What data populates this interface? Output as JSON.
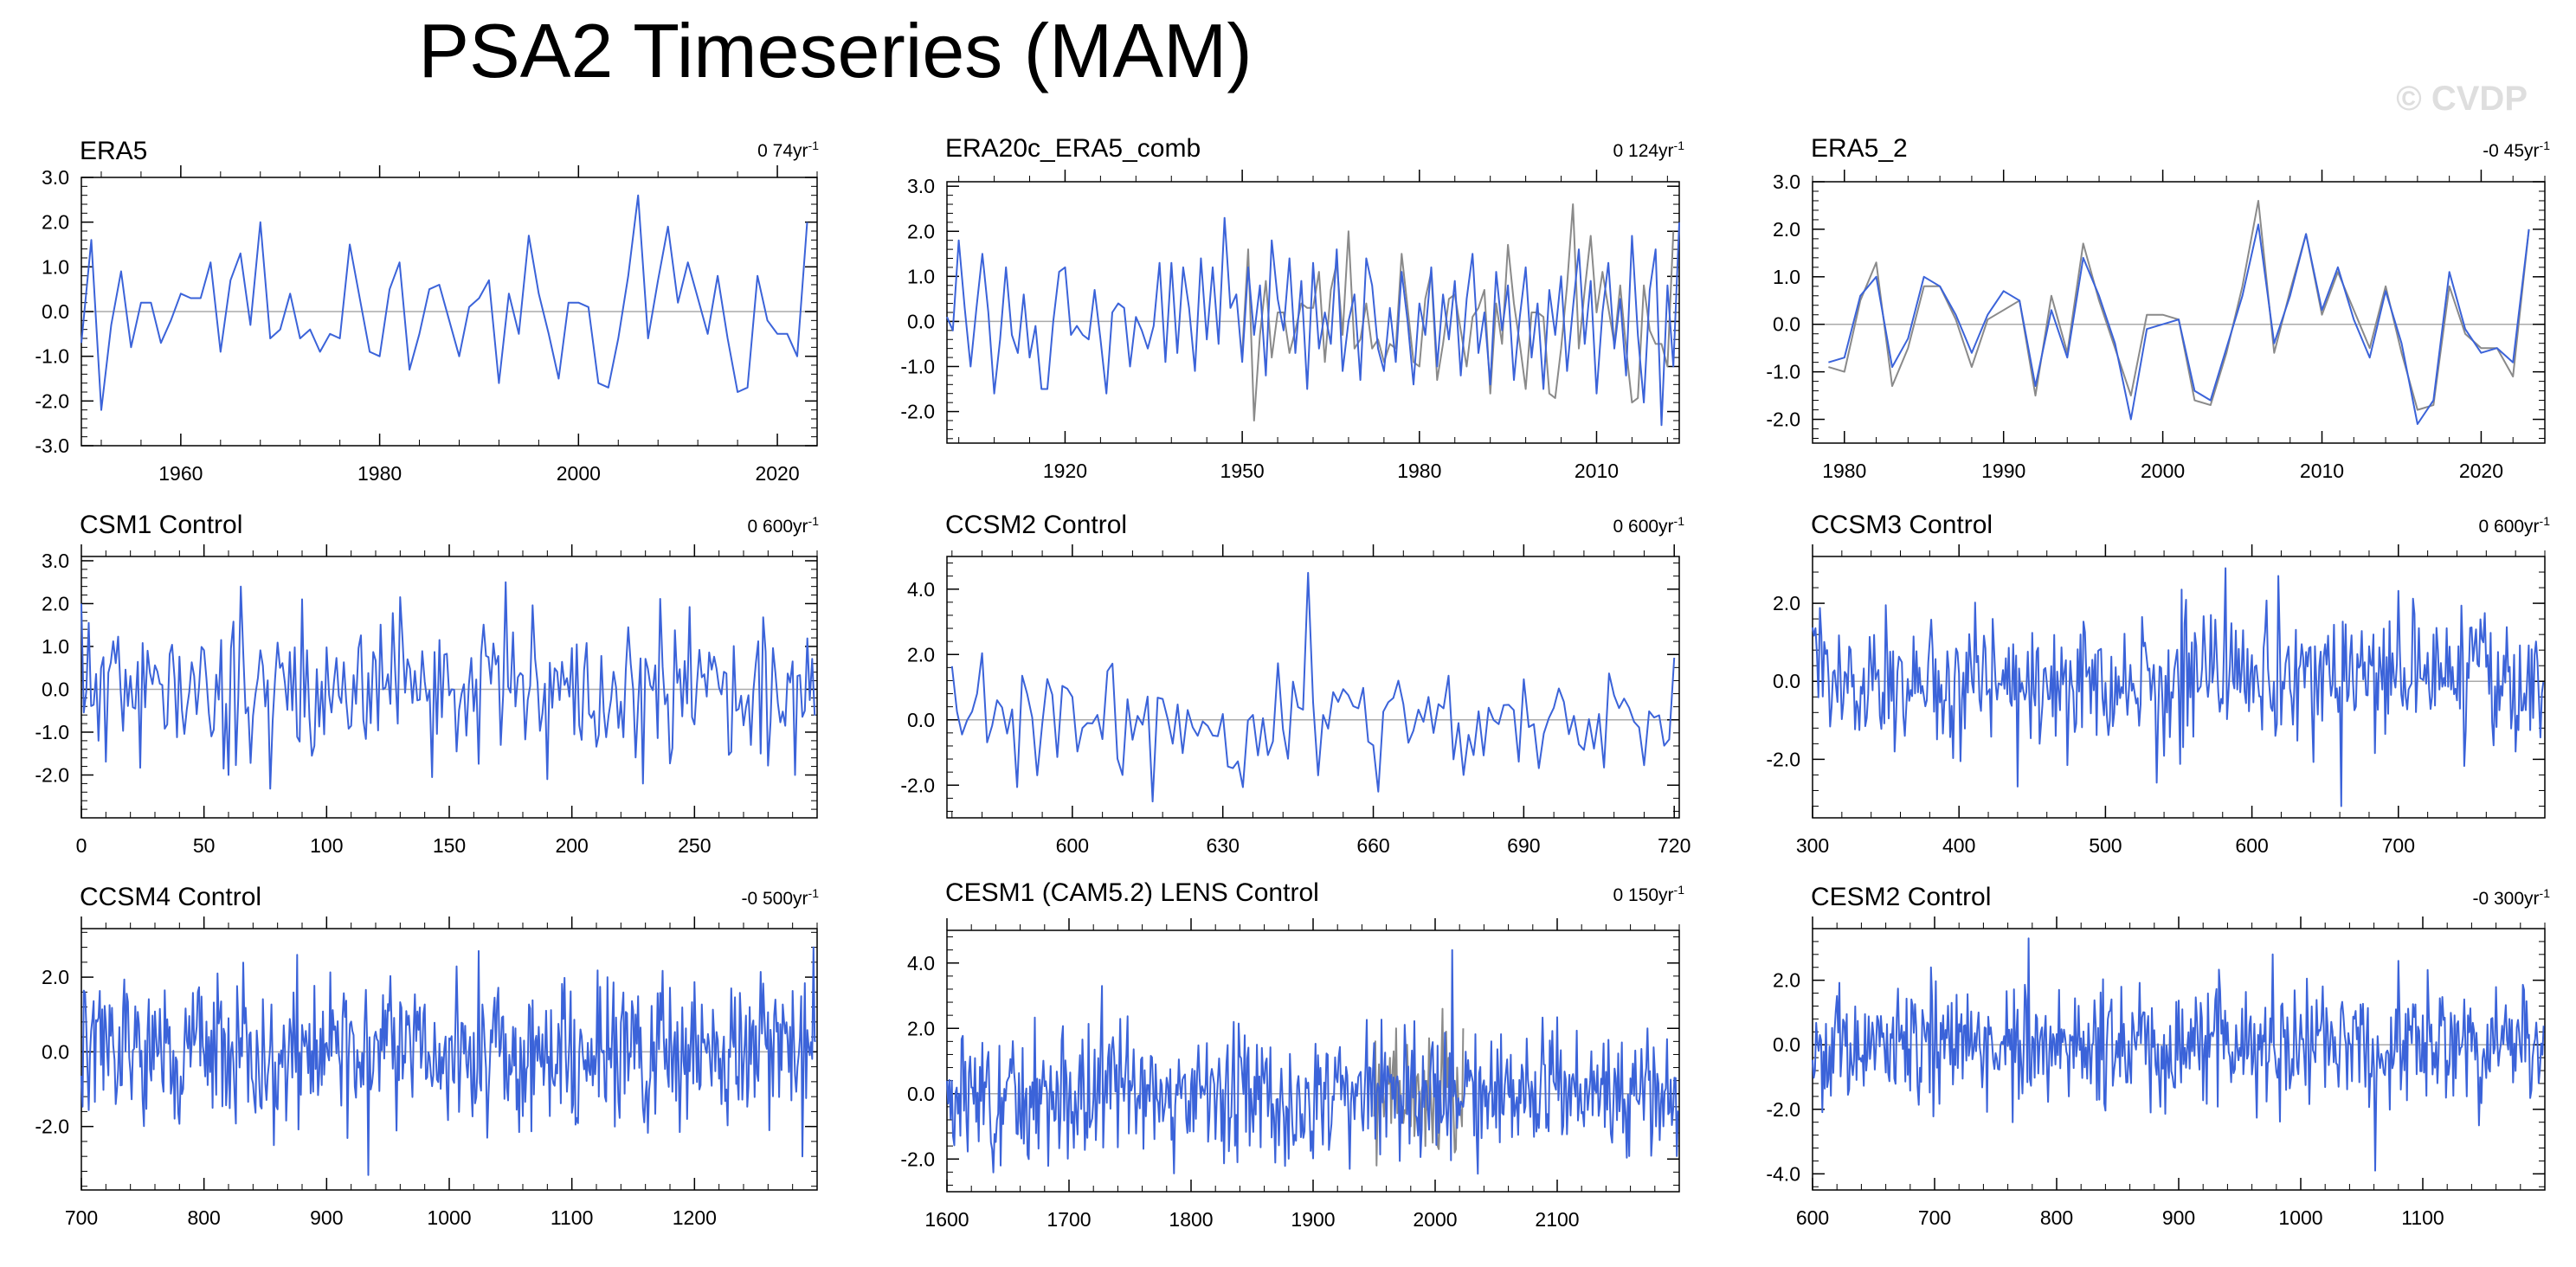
{
  "title": "PSA2 Timeseries (MAM)",
  "watermark": "© CVDP",
  "colors": {
    "primary": "#3b63d9",
    "secondary": "#8a8a8a",
    "zero_line": "#aaaaaa",
    "axis": "#000000"
  },
  "chart_data": [
    {
      "type": "line",
      "title": "ERA5",
      "trend_value": "0 74yr",
      "trend_unit": "-1",
      "xlim": [
        1950,
        2024
      ],
      "ylim": [
        -3,
        3
      ],
      "xticks": [
        1960,
        1980,
        2000,
        2020
      ],
      "yticks": [
        -3,
        -2,
        -1,
        0,
        1,
        2,
        3
      ],
      "ytick_labels": [
        "-3.0",
        "-2.0",
        "-1.0",
        "0.0",
        "1.0",
        "2.0",
        "3.0"
      ],
      "series": [
        {
          "name": "ERA5",
          "color": "#3b63d9",
          "x_start": 1950,
          "x_step": 1,
          "values": [
            -0.7,
            1.6,
            -2.2,
            -0.3,
            0.9,
            -0.8,
            0.2,
            0.2,
            -0.7,
            -0.2,
            0.4,
            0.3,
            0.3,
            1.1,
            -0.9,
            0.7,
            1.3,
            -0.3,
            2.0,
            -0.6,
            -0.4,
            0.4,
            -0.6,
            -0.4,
            -0.9,
            -0.5,
            -0.6,
            1.5,
            0.3,
            -0.9,
            -1.0,
            0.5,
            1.1,
            -1.3,
            -0.5,
            0.5,
            0.6,
            -0.2,
            -1.0,
            0.1,
            0.3,
            0.7,
            -1.6,
            0.4,
            -0.5,
            1.7,
            0.4,
            -0.5,
            -1.5,
            0.2,
            0.2,
            0.1,
            -1.6,
            -1.7,
            -0.6,
            0.8,
            2.6,
            -0.6,
            0.7,
            1.9,
            0.2,
            1.1,
            0.3,
            -0.5,
            0.8,
            -0.6,
            -1.8,
            -1.7,
            0.8,
            -0.2,
            -0.5,
            -0.5,
            -1.0,
            2.0
          ]
        }
      ]
    },
    {
      "type": "line",
      "title": "ERA20c_ERA5_comb",
      "trend_value": "0 124yr",
      "trend_unit": "-1",
      "xlim": [
        1900,
        2024
      ],
      "ylim": [
        -2.7,
        3.1
      ],
      "xticks": [
        1920,
        1950,
        1980,
        2010
      ],
      "yticks": [
        -2,
        -1,
        0,
        1,
        2,
        3
      ],
      "ytick_labels": [
        "-2.0",
        "-1.0",
        "0.0",
        "1.0",
        "2.0",
        "3.0"
      ],
      "series": [
        {
          "name": "ERA20c",
          "color": "#3b63d9",
          "x_start": 1900,
          "x_step": 1,
          "values": [
            0.1,
            -0.2,
            1.8,
            0.3,
            -1.0,
            0.3,
            1.5,
            0.2,
            -1.6,
            -0.4,
            1.2,
            -0.3,
            -0.7,
            0.6,
            -0.8,
            -0.1,
            -1.5,
            -1.5,
            0.0,
            1.1,
            1.2,
            -0.3,
            -0.1,
            -0.3,
            -0.4,
            0.7,
            -0.4,
            -1.6,
            0.2,
            0.4,
            0.3,
            -1.0,
            0.1,
            -0.2,
            -0.6,
            -0.1,
            1.3,
            -0.9,
            1.3,
            -0.7,
            1.2,
            0.3,
            -1.1,
            1.4,
            -0.4,
            1.2,
            -0.5,
            2.3,
            0.3,
            0.6,
            -0.9,
            1.2,
            -0.3,
            0.8,
            -1.2,
            1.8,
            0.5,
            -0.2,
            1.4,
            -0.7,
            0.9,
            -1.5,
            1.3,
            -0.6,
            0.2,
            -0.5,
            1.6,
            -1.1,
            0.0,
            0.6,
            -1.3,
            1.4,
            0.8,
            -0.6,
            -1.1,
            0.3,
            -0.9,
            1.1,
            0.0,
            -1.4,
            0.4,
            -0.3,
            1.2,
            -1.0,
            0.6,
            -0.4,
            0.9,
            -1.2,
            0.5,
            1.5,
            -0.7,
            0.2,
            -1.4,
            1.1,
            -0.2,
            0.8,
            -1.3,
            0.1,
            1.2,
            -0.8,
            0.4,
            -1.5,
            0.7,
            -0.3,
            1.0,
            -1.1,
            0.3,
            1.6,
            -0.5,
            0.9,
            -1.6,
            0.2,
            1.3,
            -0.6,
            0.5,
            -1.2,
            1.9,
            -0.3,
            -1.8,
            0.7,
            1.6,
            -2.3,
            0.8,
            -1.0,
            2.2
          ]
        },
        {
          "name": "ERA5",
          "color": "#8a8a8a",
          "x_start": 1950,
          "x_step": 1,
          "values": [
            -0.7,
            1.6,
            -2.2,
            -0.3,
            0.9,
            -0.8,
            0.2,
            0.2,
            -0.7,
            -0.2,
            0.4,
            0.3,
            0.3,
            1.1,
            -0.9,
            0.7,
            1.3,
            -0.3,
            2.0,
            -0.6,
            -0.4,
            0.4,
            -0.6,
            -0.4,
            -0.9,
            -0.5,
            -0.6,
            1.5,
            0.3,
            -0.9,
            -1.0,
            0.5,
            1.1,
            -1.3,
            -0.5,
            0.5,
            0.6,
            -0.2,
            -1.0,
            0.1,
            0.3,
            0.7,
            -1.6,
            0.4,
            -0.5,
            1.7,
            0.4,
            -0.5,
            -1.5,
            0.2,
            0.2,
            0.1,
            -1.6,
            -1.7,
            -0.6,
            0.8,
            2.6,
            -0.6,
            0.7,
            1.9,
            0.2,
            1.1,
            0.3,
            -0.5,
            0.8,
            -0.6,
            -1.8,
            -1.7,
            0.8,
            -0.2,
            -0.5,
            -0.5,
            -1.0,
            2.0
          ]
        }
      ]
    },
    {
      "type": "line",
      "title": "ERA5_2",
      "trend_value": "-0 45yr",
      "trend_unit": "-1",
      "xlim": [
        1978,
        2024
      ],
      "ylim": [
        -2.5,
        3.0
      ],
      "xticks": [
        1980,
        1990,
        2000,
        2010,
        2020
      ],
      "yticks": [
        -2,
        -1,
        0,
        1,
        2,
        3
      ],
      "ytick_labels": [
        "-2.0",
        "-1.0",
        "0.0",
        "1.0",
        "2.0",
        "3.0"
      ],
      "series": [
        {
          "name": "ERA5 (grey)",
          "color": "#8a8a8a",
          "x_start": 1979,
          "x_step": 1,
          "values": [
            -0.9,
            -1.0,
            0.5,
            1.3,
            -1.3,
            -0.5,
            0.8,
            0.8,
            0.1,
            -0.9,
            0.1,
            0.3,
            0.5,
            -1.5,
            0.6,
            -0.6,
            1.7,
            0.5,
            -0.5,
            -1.5,
            0.2,
            0.2,
            0.1,
            -1.6,
            -1.7,
            -0.6,
            0.8,
            2.6,
            -0.6,
            0.7,
            1.9,
            0.2,
            1.1,
            0.3,
            -0.5,
            0.8,
            -0.6,
            -1.8,
            -1.7,
            0.8,
            -0.2,
            -0.5,
            -0.5,
            -1.1,
            2.0
          ]
        },
        {
          "name": "ERA5_2",
          "color": "#3b63d9",
          "x_start": 1979,
          "x_step": 1,
          "values": [
            -0.8,
            -0.7,
            0.6,
            1.0,
            -0.9,
            -0.3,
            1.0,
            0.8,
            0.2,
            -0.6,
            0.2,
            0.7,
            0.5,
            -1.3,
            0.3,
            -0.7,
            1.4,
            0.6,
            -0.4,
            -2.0,
            -0.1,
            0.0,
            0.1,
            -1.4,
            -1.6,
            -0.5,
            0.6,
            2.1,
            -0.4,
            0.6,
            1.9,
            0.3,
            1.2,
            0.1,
            -0.7,
            0.7,
            -0.4,
            -2.1,
            -1.6,
            1.1,
            -0.1,
            -0.6,
            -0.5,
            -0.8,
            2.0
          ]
        }
      ]
    },
    {
      "type": "line",
      "title": "CSM1 Control",
      "trend_value": "0 600yr",
      "trend_unit": "-1",
      "xlim": [
        0,
        300
      ],
      "ylim": [
        -3.0,
        3.1
      ],
      "xticks": [
        0,
        50,
        100,
        150,
        200,
        250
      ],
      "yticks": [
        -2,
        -1,
        0,
        1,
        2,
        3
      ],
      "ytick_labels": [
        "-2.0",
        "-1.0",
        "0.0",
        "1.0",
        "2.0",
        "3.0"
      ],
      "series": [
        {
          "name": "CSM1",
          "color": "#3b63d9",
          "x_start": 0,
          "x_step": 1,
          "seed": 11,
          "n": 300,
          "amp": 0.85,
          "peaks": [
            [
              0,
              2.0
            ],
            [
              65,
              2.4
            ],
            [
              173,
              2.5
            ],
            [
              90,
              2.1
            ],
            [
              190,
              -2.1
            ],
            [
              229,
              -2.2
            ],
            [
              60,
              -2.0
            ],
            [
              291,
              -2.0
            ]
          ]
        }
      ]
    },
    {
      "type": "line",
      "title": "CCSM2 Control",
      "trend_value": "0 600yr",
      "trend_unit": "-1",
      "xlim": [
        575,
        721
      ],
      "ylim": [
        -3.0,
        5.0
      ],
      "xticks": [
        600,
        630,
        660,
        690,
        720
      ],
      "yticks": [
        -2,
        0,
        2,
        4
      ],
      "ytick_labels": [
        "-2.0",
        "0.0",
        "2.0",
        "4.0"
      ],
      "series": [
        {
          "name": "CCSM2",
          "color": "#3b63d9",
          "x_start": 576,
          "x_step": 1,
          "seed": 23,
          "n": 145,
          "amp": 0.85,
          "peaks": [
            [
              647,
              4.5
            ],
            [
              616,
              -2.5
            ],
            [
              661,
              -2.2
            ],
            [
              665,
              1.2
            ],
            [
              720,
              1.9
            ],
            [
              593,
              -1.7
            ]
          ]
        }
      ]
    },
    {
      "type": "line",
      "title": "CCSM3 Control",
      "trend_value": "0 600yr",
      "trend_unit": "-1",
      "xlim": [
        300,
        800
      ],
      "ylim": [
        -3.5,
        3.2
      ],
      "xticks": [
        300,
        400,
        500,
        600,
        700
      ],
      "yticks": [
        -2,
        0,
        2
      ],
      "ytick_labels": [
        "-2.0",
        "0.0",
        "2.0"
      ],
      "series": [
        {
          "name": "CCSM3",
          "color": "#3b63d9",
          "x_start": 300,
          "x_step": 1,
          "seed": 37,
          "n": 500,
          "amp": 0.85,
          "peaks": [
            [
              582,
              2.9
            ],
            [
              661,
              -3.2
            ],
            [
              440,
              -2.7
            ],
            [
              535,
              -2.6
            ],
            [
              618,
              2.7
            ]
          ]
        }
      ]
    },
    {
      "type": "line",
      "title": "CCSM4 Control",
      "trend_value": "-0 500yr",
      "trend_unit": "-1",
      "xlim": [
        700,
        1300
      ],
      "ylim": [
        -3.7,
        3.3
      ],
      "xticks": [
        700,
        800,
        900,
        1000,
        1100,
        1200
      ],
      "yticks": [
        -2,
        0,
        2
      ],
      "ytick_labels": [
        "-2.0",
        "0.0",
        "2.0"
      ],
      "series": [
        {
          "name": "CCSM4",
          "color": "#3b63d9",
          "x_start": 700,
          "x_step": 1,
          "seed": 51,
          "n": 600,
          "amp": 0.95,
          "peaks": [
            [
              934,
              -3.3
            ],
            [
              1297,
              2.8
            ],
            [
              1288,
              -2.8
            ],
            [
              876,
              2.6
            ],
            [
              1024,
              2.7
            ],
            [
              857,
              -2.5
            ]
          ]
        }
      ]
    },
    {
      "type": "line",
      "title": "CESM1 (CAM5.2) LENS Control",
      "trend_value": "0 150yr",
      "trend_unit": "-1",
      "xlim": [
        1600,
        2200
      ],
      "ylim": [
        -3.0,
        5.0
      ],
      "xticks": [
        1600,
        1700,
        1800,
        1900,
        2000,
        2100
      ],
      "yticks": [
        -2,
        0,
        2,
        4
      ],
      "ytick_labels": [
        "-2.0",
        "0.0",
        "2.0",
        "4.0"
      ],
      "series": [
        {
          "name": "CESM1",
          "color": "#3b63d9",
          "x_start": 1600,
          "x_step": 1,
          "seed": 67,
          "n": 600,
          "amp": 0.95,
          "peaks": [
            [
              2014,
              4.4
            ],
            [
              1727,
              3.3
            ],
            [
              1930,
              -2.3
            ],
            [
              1644,
              -2.2
            ],
            [
              2174,
              2.0
            ]
          ]
        },
        {
          "name": "ERA5 overlay",
          "color": "#8a8a8a",
          "x_start": 1950,
          "x_step": 1,
          "values": [
            -0.7,
            1.6,
            -2.2,
            -0.3,
            0.9,
            -0.8,
            0.2,
            0.2,
            -0.7,
            -0.2,
            0.4,
            0.3,
            0.3,
            1.1,
            -0.9,
            0.7,
            1.3,
            -0.3,
            2.0,
            -0.6,
            -0.4,
            0.4,
            -0.6,
            -0.4,
            -0.9,
            -0.5,
            -0.6,
            1.5,
            0.3,
            -0.9,
            -1.0,
            0.5,
            1.1,
            -1.3,
            -0.5,
            0.5,
            0.6,
            -0.2,
            -1.0,
            0.1,
            0.3,
            0.7,
            -1.6,
            0.4,
            -0.5,
            1.7,
            0.4,
            -0.5,
            -1.5,
            0.2,
            0.2,
            0.1,
            -1.6,
            -1.7,
            -0.6,
            0.8,
            2.6,
            -0.6,
            0.7,
            1.9,
            0.2,
            1.1,
            0.3,
            -0.5,
            0.8,
            -0.6,
            -1.8,
            -1.7,
            0.8,
            -0.2,
            -0.5,
            -0.5,
            -1.0,
            2.0
          ]
        }
      ]
    },
    {
      "type": "line",
      "title": "CESM2 Control",
      "trend_value": "-0 300yr",
      "trend_unit": "-1",
      "xlim": [
        600,
        1200
      ],
      "ylim": [
        -4.5,
        3.6
      ],
      "xticks": [
        600,
        700,
        800,
        900,
        1000,
        1100
      ],
      "yticks": [
        -4,
        -2,
        0,
        2
      ],
      "ytick_labels": [
        "-4.0",
        "-2.0",
        "0.0",
        "2.0"
      ],
      "series": [
        {
          "name": "CESM2",
          "color": "#3b63d9",
          "x_start": 600,
          "x_step": 1,
          "seed": 83,
          "n": 600,
          "amp": 0.95,
          "peaks": [
            [
              1061,
              -3.9
            ],
            [
              777,
              3.3
            ],
            [
              764,
              -2.4
            ],
            [
              1146,
              -2.5
            ],
            [
              977,
              2.8
            ],
            [
              1080,
              2.6
            ]
          ]
        }
      ]
    }
  ]
}
